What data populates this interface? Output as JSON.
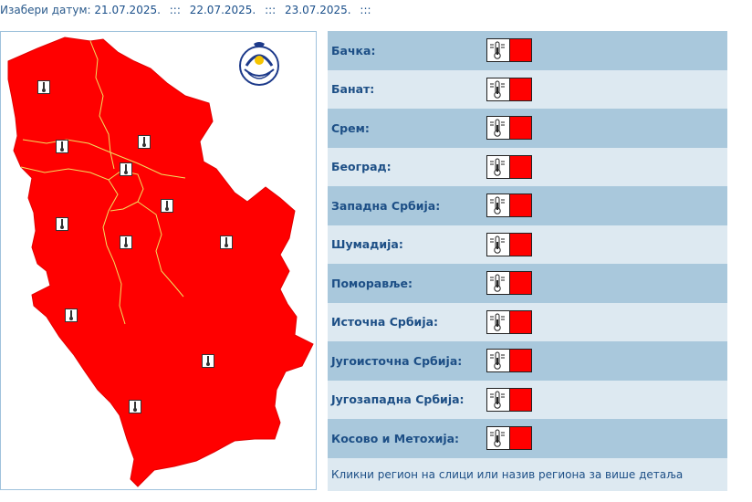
{
  "date_selector": {
    "label": "Изабери датум:",
    "dates": [
      "21.07.2025.",
      "22.07.2025.",
      "23.07.2025."
    ],
    "separator": ":::"
  },
  "map": {
    "region_color": "#ff0000",
    "border_color": "#ffff66",
    "logo_name": "rhmz-logo",
    "logo_text": "РХМЗ СРБИЈЕ",
    "markers": [
      {
        "name": "backa-marker"
      },
      {
        "name": "srem-marker"
      },
      {
        "name": "banat-marker"
      },
      {
        "name": "beograd-marker"
      },
      {
        "name": "zapadna-srbija-marker-north"
      },
      {
        "name": "pomoravlje-marker"
      },
      {
        "name": "sumadija-marker"
      },
      {
        "name": "istocna-srbija-marker"
      },
      {
        "name": "jugozapadna-srbija-marker"
      },
      {
        "name": "jugoistocna-srbija-marker"
      },
      {
        "name": "kosovo-marker"
      }
    ]
  },
  "regions": [
    {
      "name": "Бачка:",
      "hazard_icon": "thermometer-icon",
      "level_color": "#ff0000"
    },
    {
      "name": "Банат:",
      "hazard_icon": "thermometer-icon",
      "level_color": "#ff0000"
    },
    {
      "name": "Срем:",
      "hazard_icon": "thermometer-icon",
      "level_color": "#ff0000"
    },
    {
      "name": "Београд:",
      "hazard_icon": "thermometer-icon",
      "level_color": "#ff0000"
    },
    {
      "name": "Западна Србија:",
      "hazard_icon": "thermometer-icon",
      "level_color": "#ff0000"
    },
    {
      "name": "Шумадија:",
      "hazard_icon": "thermometer-icon",
      "level_color": "#ff0000"
    },
    {
      "name": "Поморавље:",
      "hazard_icon": "thermometer-icon",
      "level_color": "#ff0000"
    },
    {
      "name": "Источна Србија:",
      "hazard_icon": "thermometer-icon",
      "level_color": "#ff0000"
    },
    {
      "name": "Југоисточна Србија:",
      "hazard_icon": "thermometer-icon",
      "level_color": "#ff0000"
    },
    {
      "name": "Југозападна Србија:",
      "hazard_icon": "thermometer-icon",
      "level_color": "#ff0000"
    },
    {
      "name": "Косово и Метохија:",
      "hazard_icon": "thermometer-icon",
      "level_color": "#ff0000"
    }
  ],
  "footer_text": "Кликни регион на слици или назив региона за више детаља"
}
